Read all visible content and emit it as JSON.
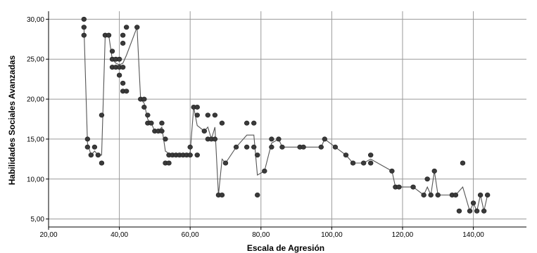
{
  "chart_data": {
    "type": "scatter",
    "xlabel": "Escala de Agresión",
    "ylabel": "Habilidades Sociales Avanzadas",
    "xlim": [
      20,
      155
    ],
    "ylim": [
      4,
      31
    ],
    "x_ticks": [
      "20,00",
      "40,00",
      "60,00",
      "80,00",
      "100,00",
      "120,00",
      "140,00"
    ],
    "y_ticks": [
      "5,00",
      "10,00",
      "15,00",
      "20,00",
      "25,00",
      "30,00"
    ],
    "x_tick_values": [
      20,
      40,
      60,
      80,
      100,
      120,
      140
    ],
    "y_tick_values": [
      5,
      10,
      15,
      20,
      25,
      30
    ],
    "grid": true,
    "colors": {
      "marker": "#3a3a3a",
      "line": "#555555",
      "grid": "#9a9a9a"
    },
    "series": [
      {
        "type": "scatter",
        "points": [
          [
            30,
            30
          ],
          [
            30,
            29
          ],
          [
            30,
            28
          ],
          [
            31,
            15
          ],
          [
            31,
            14
          ],
          [
            32,
            13
          ],
          [
            33,
            14
          ],
          [
            34,
            13
          ],
          [
            35,
            18
          ],
          [
            35,
            12
          ],
          [
            36,
            28
          ],
          [
            37,
            28
          ],
          [
            38,
            26
          ],
          [
            38,
            25
          ],
          [
            38,
            24
          ],
          [
            39,
            25
          ],
          [
            39,
            24
          ],
          [
            40,
            25
          ],
          [
            40,
            24
          ],
          [
            40,
            23
          ],
          [
            41,
            28
          ],
          [
            41,
            27
          ],
          [
            41,
            24
          ],
          [
            41,
            22
          ],
          [
            41,
            21
          ],
          [
            42,
            29
          ],
          [
            42,
            21
          ],
          [
            45,
            29
          ],
          [
            46,
            20
          ],
          [
            47,
            20
          ],
          [
            47,
            19
          ],
          [
            48,
            18
          ],
          [
            48,
            17
          ],
          [
            49,
            17
          ],
          [
            50,
            16
          ],
          [
            51,
            16
          ],
          [
            52,
            17
          ],
          [
            52,
            16
          ],
          [
            53,
            15
          ],
          [
            53,
            12
          ],
          [
            54,
            12
          ],
          [
            54,
            13
          ],
          [
            55,
            13
          ],
          [
            56,
            13
          ],
          [
            57,
            13
          ],
          [
            58,
            13
          ],
          [
            59,
            13
          ],
          [
            60,
            14
          ],
          [
            60,
            13
          ],
          [
            61,
            19
          ],
          [
            62,
            19
          ],
          [
            62,
            18
          ],
          [
            62,
            13
          ],
          [
            64,
            16
          ],
          [
            65,
            18
          ],
          [
            65,
            15
          ],
          [
            66,
            15
          ],
          [
            67,
            18
          ],
          [
            67,
            15
          ],
          [
            68,
            8
          ],
          [
            69,
            8
          ],
          [
            69,
            17
          ],
          [
            70,
            12
          ],
          [
            73,
            14
          ],
          [
            76,
            17
          ],
          [
            76,
            14
          ],
          [
            78,
            17
          ],
          [
            78,
            14
          ],
          [
            79,
            13
          ],
          [
            79,
            8
          ],
          [
            81,
            11
          ],
          [
            83,
            15
          ],
          [
            83,
            14
          ],
          [
            85,
            15
          ],
          [
            86,
            14
          ],
          [
            91,
            14
          ],
          [
            92,
            14
          ],
          [
            97,
            14
          ],
          [
            98,
            15
          ],
          [
            101,
            14
          ],
          [
            104,
            13
          ],
          [
            106,
            12
          ],
          [
            109,
            12
          ],
          [
            111,
            13
          ],
          [
            111,
            12
          ],
          [
            117,
            11
          ],
          [
            118,
            9
          ],
          [
            119,
            9
          ],
          [
            123,
            9
          ],
          [
            126,
            8
          ],
          [
            127,
            10
          ],
          [
            128,
            8
          ],
          [
            129,
            11
          ],
          [
            130,
            8
          ],
          [
            134,
            8
          ],
          [
            135,
            8
          ],
          [
            136,
            6
          ],
          [
            137,
            12
          ],
          [
            139,
            6
          ],
          [
            140,
            7
          ],
          [
            141,
            6
          ],
          [
            142,
            8
          ],
          [
            143,
            6
          ],
          [
            144,
            8
          ]
        ]
      },
      {
        "type": "line",
        "points": [
          [
            30,
            29
          ],
          [
            31,
            14.5
          ],
          [
            32,
            13
          ],
          [
            33,
            13.5
          ],
          [
            34,
            13
          ],
          [
            35,
            13
          ],
          [
            36,
            28
          ],
          [
            37,
            28
          ],
          [
            38,
            25
          ],
          [
            39,
            24.5
          ],
          [
            40,
            24.3
          ],
          [
            41,
            24.5
          ],
          [
            42,
            25.5
          ],
          [
            45,
            29
          ],
          [
            46,
            20
          ],
          [
            47,
            19.5
          ],
          [
            48,
            17.5
          ],
          [
            49,
            17
          ],
          [
            50,
            16
          ],
          [
            51,
            16
          ],
          [
            52,
            16.5
          ],
          [
            53,
            13.5
          ],
          [
            54,
            13.2
          ],
          [
            55,
            13
          ],
          [
            56,
            13
          ],
          [
            57,
            13
          ],
          [
            58,
            13
          ],
          [
            59,
            13
          ],
          [
            60,
            13.3
          ],
          [
            61,
            19
          ],
          [
            62,
            16.7
          ],
          [
            64,
            16
          ],
          [
            65,
            16.5
          ],
          [
            66,
            15
          ],
          [
            67,
            16.5
          ],
          [
            68,
            8
          ],
          [
            69,
            12.5
          ],
          [
            70,
            12
          ],
          [
            73,
            14
          ],
          [
            76,
            15.5
          ],
          [
            78,
            15.5
          ],
          [
            79,
            10.5
          ],
          [
            81,
            11
          ],
          [
            83,
            14.5
          ],
          [
            85,
            15
          ],
          [
            86,
            14
          ],
          [
            91,
            14
          ],
          [
            92,
            14
          ],
          [
            97,
            14
          ],
          [
            98,
            15
          ],
          [
            101,
            14
          ],
          [
            104,
            13
          ],
          [
            106,
            12
          ],
          [
            109,
            12
          ],
          [
            111,
            12.5
          ],
          [
            117,
            11
          ],
          [
            118,
            9
          ],
          [
            119,
            9
          ],
          [
            123,
            9
          ],
          [
            126,
            8
          ],
          [
            127,
            9
          ],
          [
            128,
            8
          ],
          [
            129,
            11
          ],
          [
            130,
            8
          ],
          [
            134,
            8
          ],
          [
            135,
            8
          ],
          [
            137,
            9
          ],
          [
            139,
            6
          ],
          [
            140,
            7
          ],
          [
            141,
            6
          ],
          [
            142,
            8
          ],
          [
            143,
            6
          ],
          [
            144,
            8
          ]
        ]
      }
    ]
  }
}
